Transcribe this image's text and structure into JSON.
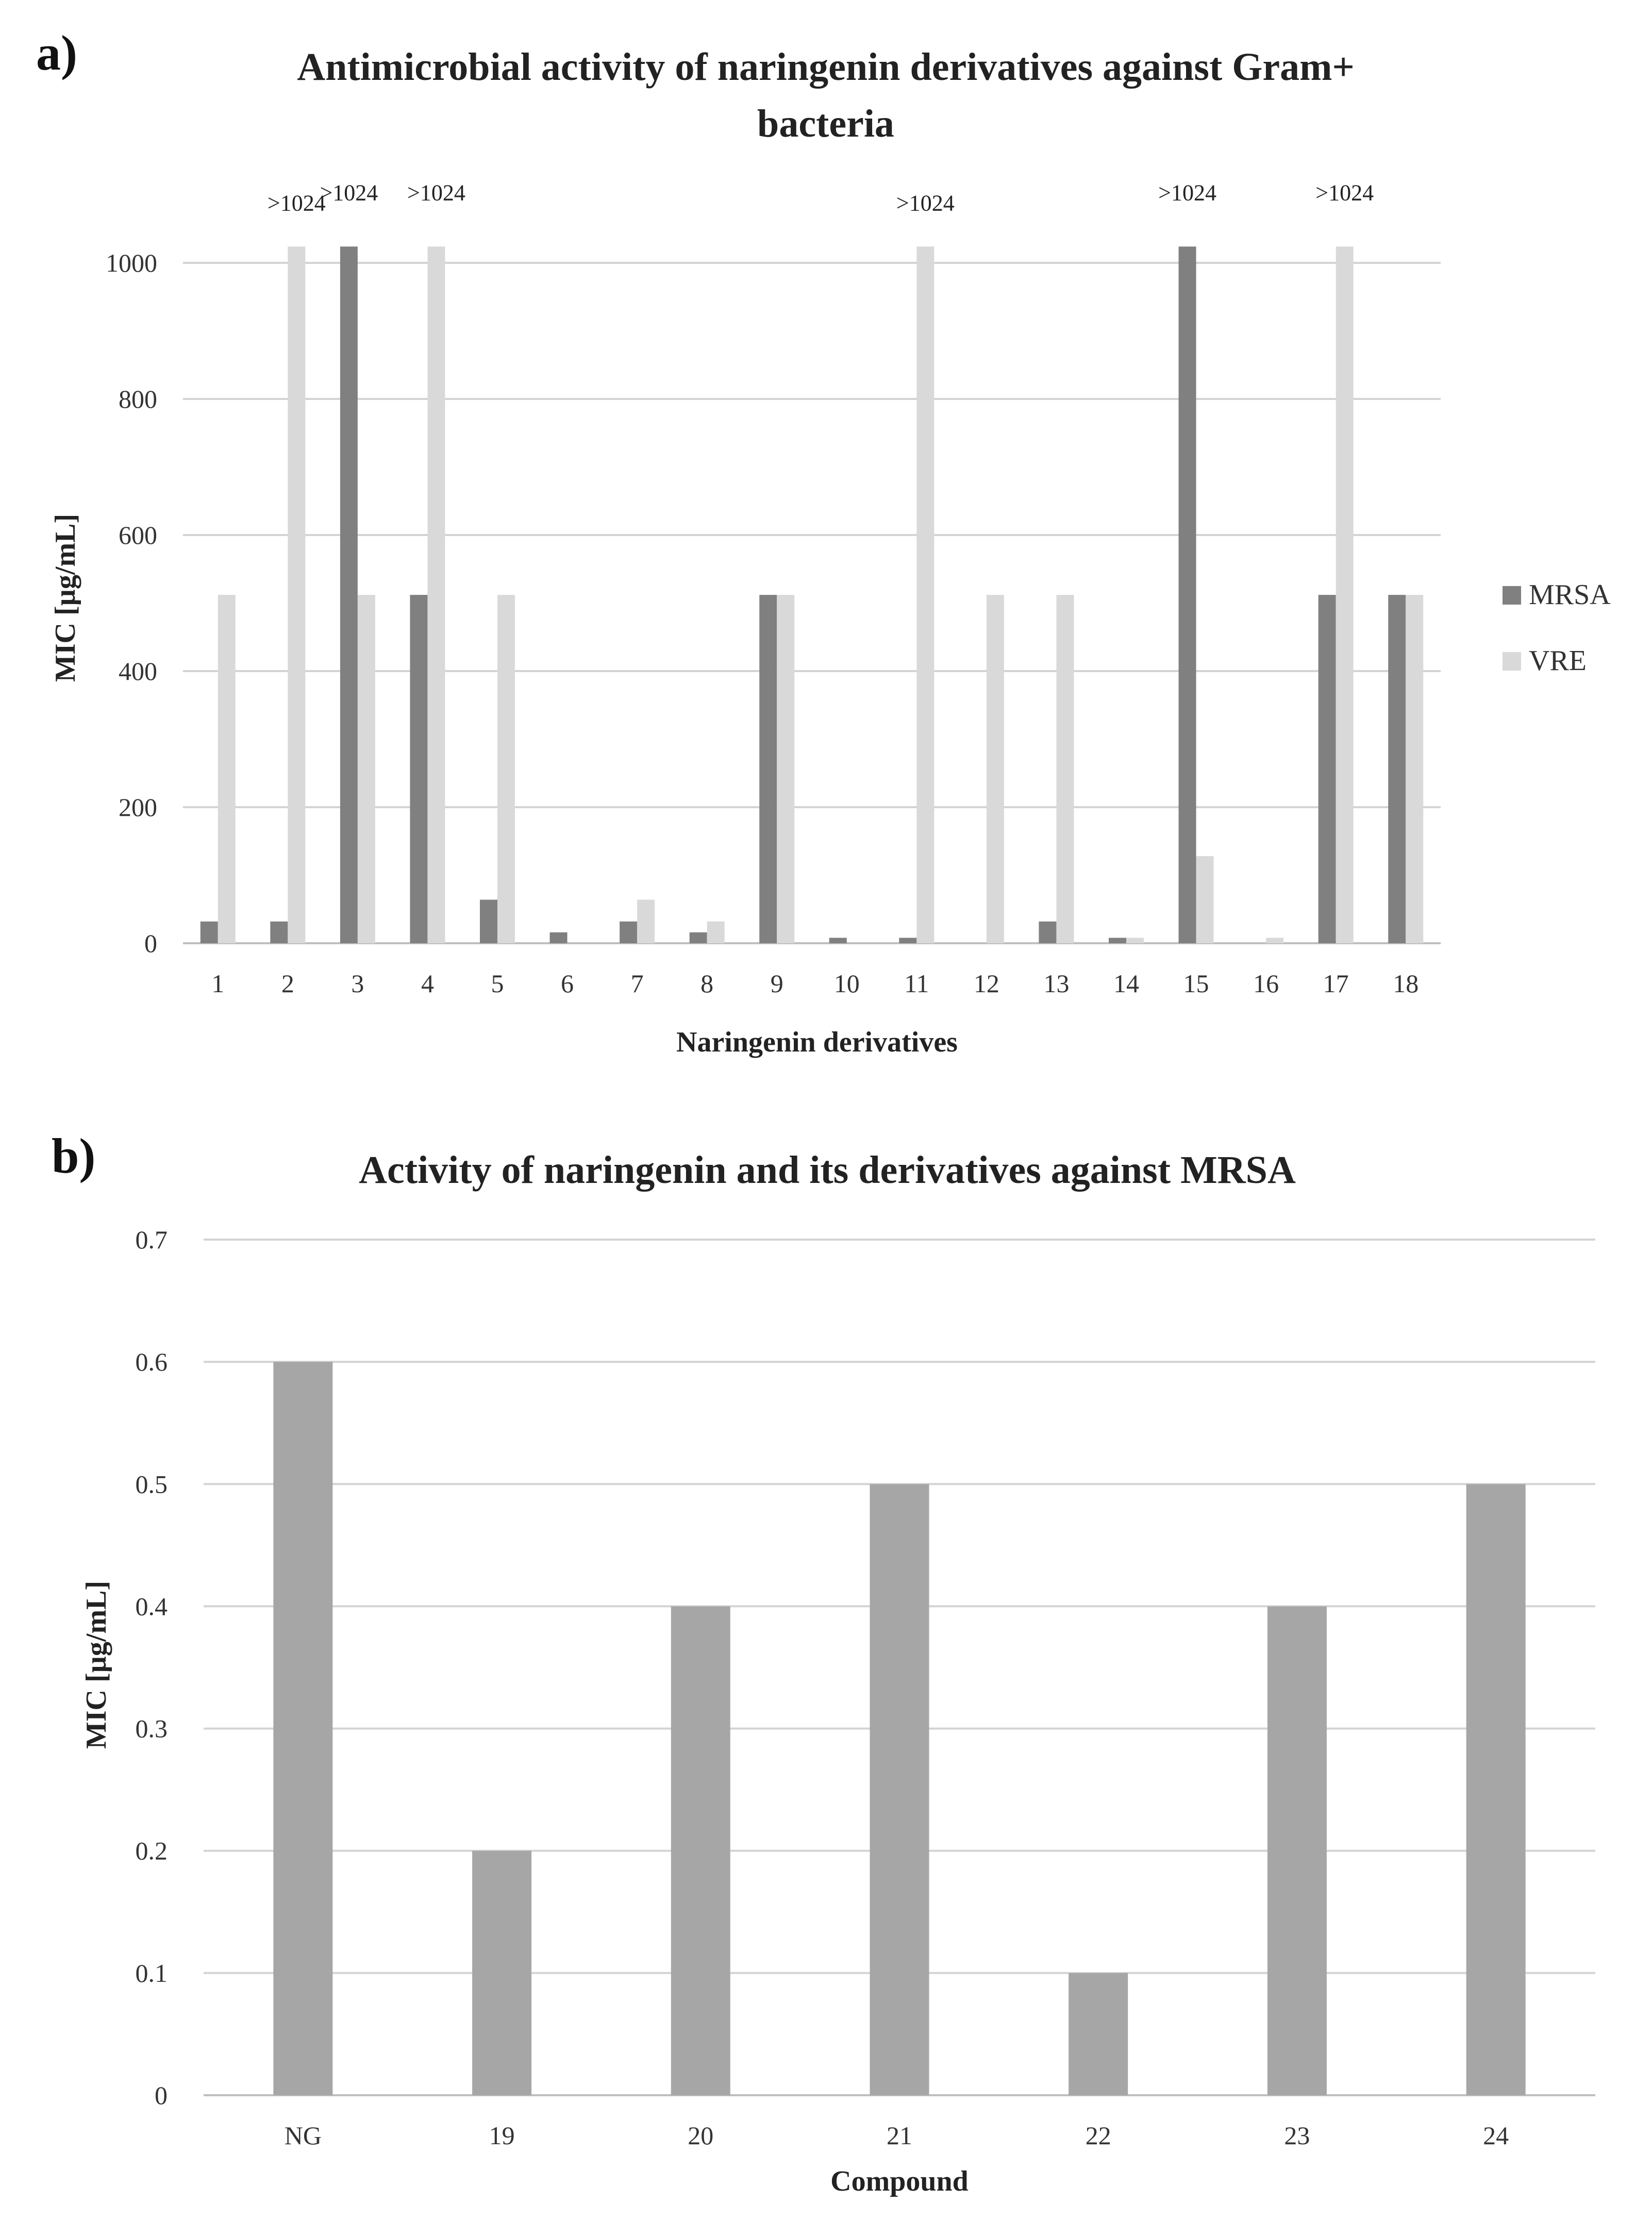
{
  "chart_data": [
    {
      "id": "a",
      "panel_label": "a)",
      "type": "bar",
      "title_lines": [
        "Antimicrobial activity of naringenin derivatives against Gram+",
        "bacteria"
      ],
      "xlabel": "Naringenin derivatives",
      "ylabel": "MIC  [µg/mL]",
      "ylim": [
        0,
        1000
      ],
      "yticks": [
        0,
        200,
        400,
        600,
        800,
        1000
      ],
      "categories": [
        "1",
        "2",
        "3",
        "4",
        "5",
        "6",
        "7",
        "8",
        "9",
        "10",
        "11",
        "12",
        "13",
        "14",
        "15",
        "16",
        "17",
        "18"
      ],
      "series": [
        {
          "name": "MRSA",
          "color": "#808080",
          "values": [
            32,
            32,
            1024,
            512,
            64,
            16,
            32,
            16,
            512,
            8,
            8,
            0,
            32,
            8,
            1024,
            0,
            512,
            512
          ],
          "labels": [
            "",
            "",
            ">1024",
            "",
            "",
            "",
            "",
            "",
            "",
            "",
            "",
            "",
            "",
            "",
            ">1024",
            "",
            "",
            ""
          ]
        },
        {
          "name": "VRE",
          "color": "#d9d9d9",
          "values": [
            512,
            1024,
            512,
            1024,
            512,
            0,
            64,
            32,
            512,
            0,
            1024,
            512,
            512,
            8,
            128,
            8,
            1024,
            512
          ],
          "labels": [
            "",
            ">1024",
            "",
            ">1024",
            "",
            "",
            "",
            "",
            "",
            "",
            ">1024",
            "",
            "",
            "",
            "",
            "",
            ">1024",
            ""
          ]
        }
      ],
      "legend": [
        "MRSA",
        "VRE"
      ],
      "legend_position": "right",
      "grid": true
    },
    {
      "id": "b",
      "panel_label": "b)",
      "type": "bar",
      "title_lines": [
        "Activity of naringenin and its derivatives against MRSA"
      ],
      "xlabel": "Compound",
      "ylabel": "MIC [µg/mL]",
      "ylim": [
        0,
        0.7
      ],
      "yticks": [
        0,
        0.1,
        0.2,
        0.3,
        0.4,
        0.5,
        0.6,
        0.7
      ],
      "categories": [
        "NG",
        "19",
        "20",
        "21",
        "22",
        "23",
        "24"
      ],
      "series": [
        {
          "name": "MRSA",
          "color": "#a6a6a6",
          "values": [
            0.6,
            0.2,
            0.4,
            0.5,
            0.1,
            0.4,
            0.5
          ]
        }
      ],
      "grid": true
    }
  ]
}
